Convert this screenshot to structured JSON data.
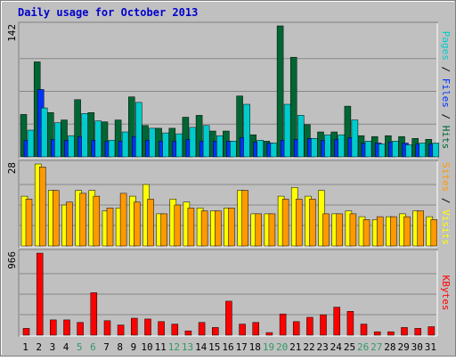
{
  "chart_data": {
    "type": "bar",
    "title": "Daily usage for October 2013",
    "categories": [
      "1",
      "2",
      "3",
      "4",
      "5",
      "6",
      "7",
      "8",
      "9",
      "10",
      "11",
      "12",
      "13",
      "14",
      "15",
      "16",
      "17",
      "18",
      "19",
      "20",
      "21",
      "22",
      "23",
      "24",
      "25",
      "26",
      "27",
      "28",
      "29",
      "30",
      "31"
    ],
    "weekend_days": [
      "5",
      "6",
      "12",
      "13",
      "19",
      "20",
      "26",
      "27"
    ],
    "colors": {
      "background": "#c0c0c0",
      "frame": "#ececec",
      "title": "#0000cc",
      "weekday_label": "#000000",
      "weekend_label": "#339966",
      "pages": "#00cccc",
      "files": "#0033ff",
      "hits": "#006633",
      "sites": "#ff9900",
      "visits": "#ffff00",
      "kbytes": "#ff0000",
      "grid": "#888888"
    },
    "panels": [
      {
        "id": "hits-files-pages",
        "ytick_label": "142",
        "ylim": [
          0,
          142
        ],
        "legend": [
          {
            "text": "Pages",
            "color_key": "pages"
          },
          {
            "text": " / ",
            "color_key": "weekday_label"
          },
          {
            "text": "Files",
            "color_key": "files"
          },
          {
            "text": " / ",
            "color_key": "weekday_label"
          },
          {
            "text": "Hits",
            "color_key": "hits"
          }
        ],
        "series": [
          {
            "name": "Hits",
            "color_key": "hits",
            "values": [
              46,
              103,
              48,
              40,
              62,
              48,
              38,
              40,
              65,
              34,
              31,
              31,
              43,
              45,
              28,
              28,
              66,
              24,
              17,
              142,
              108,
              35,
              27,
              27,
              55,
              23,
              22,
              23,
              22,
              20,
              19
            ]
          },
          {
            "name": "Files",
            "color_key": "files",
            "values": [
              18,
              73,
              19,
              18,
              22,
              18,
              17,
              17,
              22,
              18,
              17,
              17,
              19,
              17,
              17,
              17,
              21,
              16,
              15,
              18,
              19,
              20,
              18,
              19,
              21,
              15,
              15,
              16,
              15,
              14,
              14
            ]
          },
          {
            "name": "Pages",
            "color_key": "pages",
            "values": [
              29,
              53,
              37,
              23,
              47,
              39,
              18,
              27,
              59,
              31,
              26,
              25,
              32,
              34,
              23,
              17,
              57,
              18,
              15,
              57,
              45,
              20,
              24,
              24,
              40,
              17,
              14,
              17,
              13,
              15,
              15
            ]
          }
        ]
      },
      {
        "id": "visits-sites",
        "ytick_label": "28",
        "ylim": [
          0,
          28
        ],
        "legend": [
          {
            "text": "Sites",
            "color_key": "sites"
          },
          {
            "text": " / ",
            "color_key": "weekday_label"
          },
          {
            "text": "Visits",
            "color_key": "visits"
          }
        ],
        "series": [
          {
            "name": "Visits",
            "color_key": "visits",
            "values": [
              17,
              28,
              19,
              14,
              19,
              19,
              12,
              13,
              17,
              21,
              11,
              16,
              15,
              13,
              12,
              13,
              19,
              11,
              11,
              17,
              20,
              17,
              19,
              11,
              12,
              10,
              9,
              10,
              11,
              12,
              10
            ]
          },
          {
            "name": "Sites",
            "color_key": "sites",
            "values": [
              16,
              27,
              19,
              15,
              18,
              17,
              13,
              18,
              15,
              16,
              11,
              14,
              13,
              12,
              12,
              13,
              19,
              11,
              11,
              16,
              16,
              16,
              11,
              11,
              11,
              9,
              10,
              10,
              10,
              12,
              9
            ]
          }
        ]
      },
      {
        "id": "kbytes",
        "ytick_label": "966",
        "ylim": [
          0,
          966
        ],
        "legend": [
          {
            "text": "KBytes",
            "color_key": "kbytes"
          }
        ],
        "series": [
          {
            "name": "KBytes",
            "color_key": "kbytes",
            "values": [
              80,
              966,
              180,
              180,
              150,
              500,
              170,
              120,
              200,
              190,
              160,
              130,
              50,
              150,
              90,
              400,
              130,
              150,
              30,
              250,
              160,
              210,
              240,
              330,
              280,
              130,
              40,
              40,
              90,
              80,
              100
            ]
          }
        ]
      }
    ]
  }
}
